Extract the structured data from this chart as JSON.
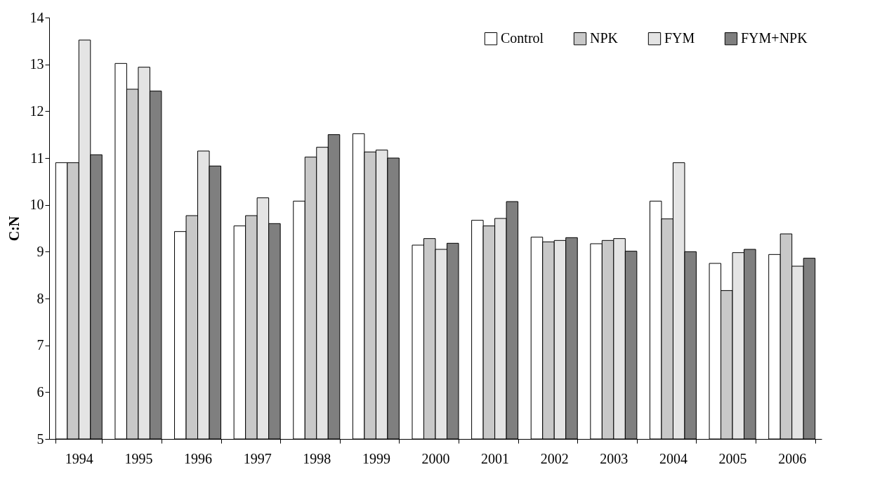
{
  "chart_data": {
    "type": "bar",
    "ylabel": "C:N",
    "categories": [
      "1994",
      "1995",
      "1996",
      "1997",
      "1998",
      "1999",
      "2000",
      "2001",
      "2002",
      "2003",
      "2004",
      "2005",
      "2006"
    ],
    "series": [
      {
        "name": "Control",
        "color": "#ffffff",
        "values": [
          10.9,
          13.02,
          9.43,
          9.55,
          10.08,
          11.52,
          9.14,
          9.67,
          9.31,
          9.17,
          10.08,
          8.75,
          8.94
        ]
      },
      {
        "name": "NPK",
        "color": "#c8c8c8",
        "values": [
          10.9,
          12.47,
          9.77,
          9.77,
          11.02,
          11.13,
          9.28,
          9.55,
          9.21,
          9.24,
          9.7,
          8.17,
          9.38
        ]
      },
      {
        "name": "FYM",
        "color": "#e4e4e4",
        "values": [
          13.52,
          12.94,
          11.15,
          10.15,
          11.23,
          11.17,
          9.05,
          9.71,
          9.24,
          9.28,
          10.9,
          8.98,
          8.69
        ]
      },
      {
        "name": "FYM+NPK",
        "color": "#7f7f7f",
        "values": [
          11.07,
          12.43,
          10.83,
          9.6,
          11.5,
          11.0,
          9.18,
          10.07,
          9.3,
          9.01,
          9.0,
          9.05,
          8.86
        ]
      }
    ],
    "ylim": [
      5,
      14
    ],
    "yticks": [
      5,
      6,
      7,
      8,
      9,
      10,
      11,
      12,
      13,
      14
    ],
    "grid": false,
    "legend": "top right"
  }
}
